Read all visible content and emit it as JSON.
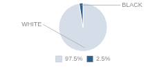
{
  "chart_data": {
    "type": "pie",
    "categories": [
      "WHITE",
      "BLACK"
    ],
    "values": [
      97.5,
      2.5
    ],
    "value_labels": [
      "97.5%",
      "2.5%"
    ],
    "colors": [
      "#d5dde8",
      "#2e5e8a"
    ],
    "legend": "bottom"
  }
}
